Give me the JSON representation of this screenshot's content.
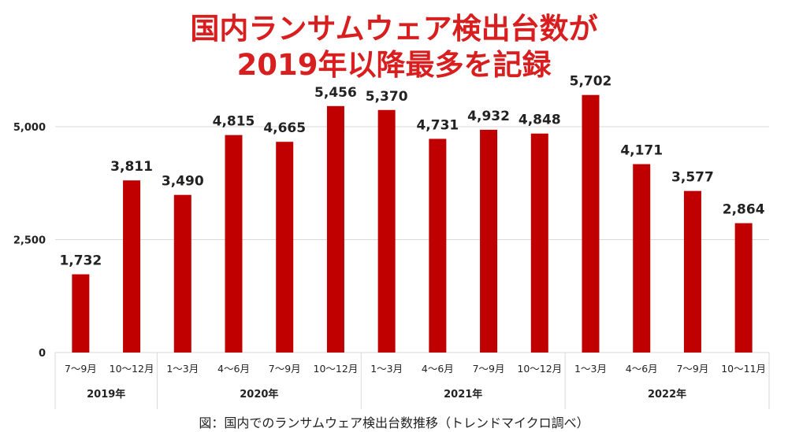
{
  "title": {
    "line1": "国内ランサムウェア検出台数が",
    "line2": "2019年以降最多を記録"
  },
  "caption": "図：国内でのランサムウェア検出台数推移（トレンドマイクロ調べ）",
  "colors": {
    "bar": "#c00000",
    "title": "#d81e1e",
    "grid": "#d9d9d9"
  },
  "chart_data": {
    "type": "bar",
    "categories": [
      "7～9月",
      "10～12月",
      "1～3月",
      "4～6月",
      "7～9月",
      "10～12月",
      "1～3月",
      "4～6月",
      "7～9月",
      "10～12月",
      "1～3月",
      "4～6月",
      "7～9月",
      "10～11月"
    ],
    "values": [
      1732,
      3811,
      3490,
      4815,
      4665,
      5456,
      5370,
      4731,
      4932,
      4848,
      5702,
      4171,
      3577,
      2864
    ],
    "value_labels": [
      "1,732",
      "3,811",
      "3,490",
      "4,815",
      "4,665",
      "5,456",
      "5,370",
      "4,731",
      "4,932",
      "4,848",
      "5,702",
      "4,171",
      "3,577",
      "2,864"
    ],
    "groups": [
      {
        "label": "2019年",
        "count": 2
      },
      {
        "label": "2020年",
        "count": 4
      },
      {
        "label": "2021年",
        "count": 4
      },
      {
        "label": "2022年",
        "count": 4
      }
    ],
    "yticks": [
      0,
      2500,
      5000
    ],
    "ytick_labels": [
      "0",
      "2,500",
      "5,000"
    ],
    "ylim": [
      0,
      5700
    ],
    "grid": true,
    "legend": "none",
    "xlabel": "",
    "ylabel": ""
  }
}
